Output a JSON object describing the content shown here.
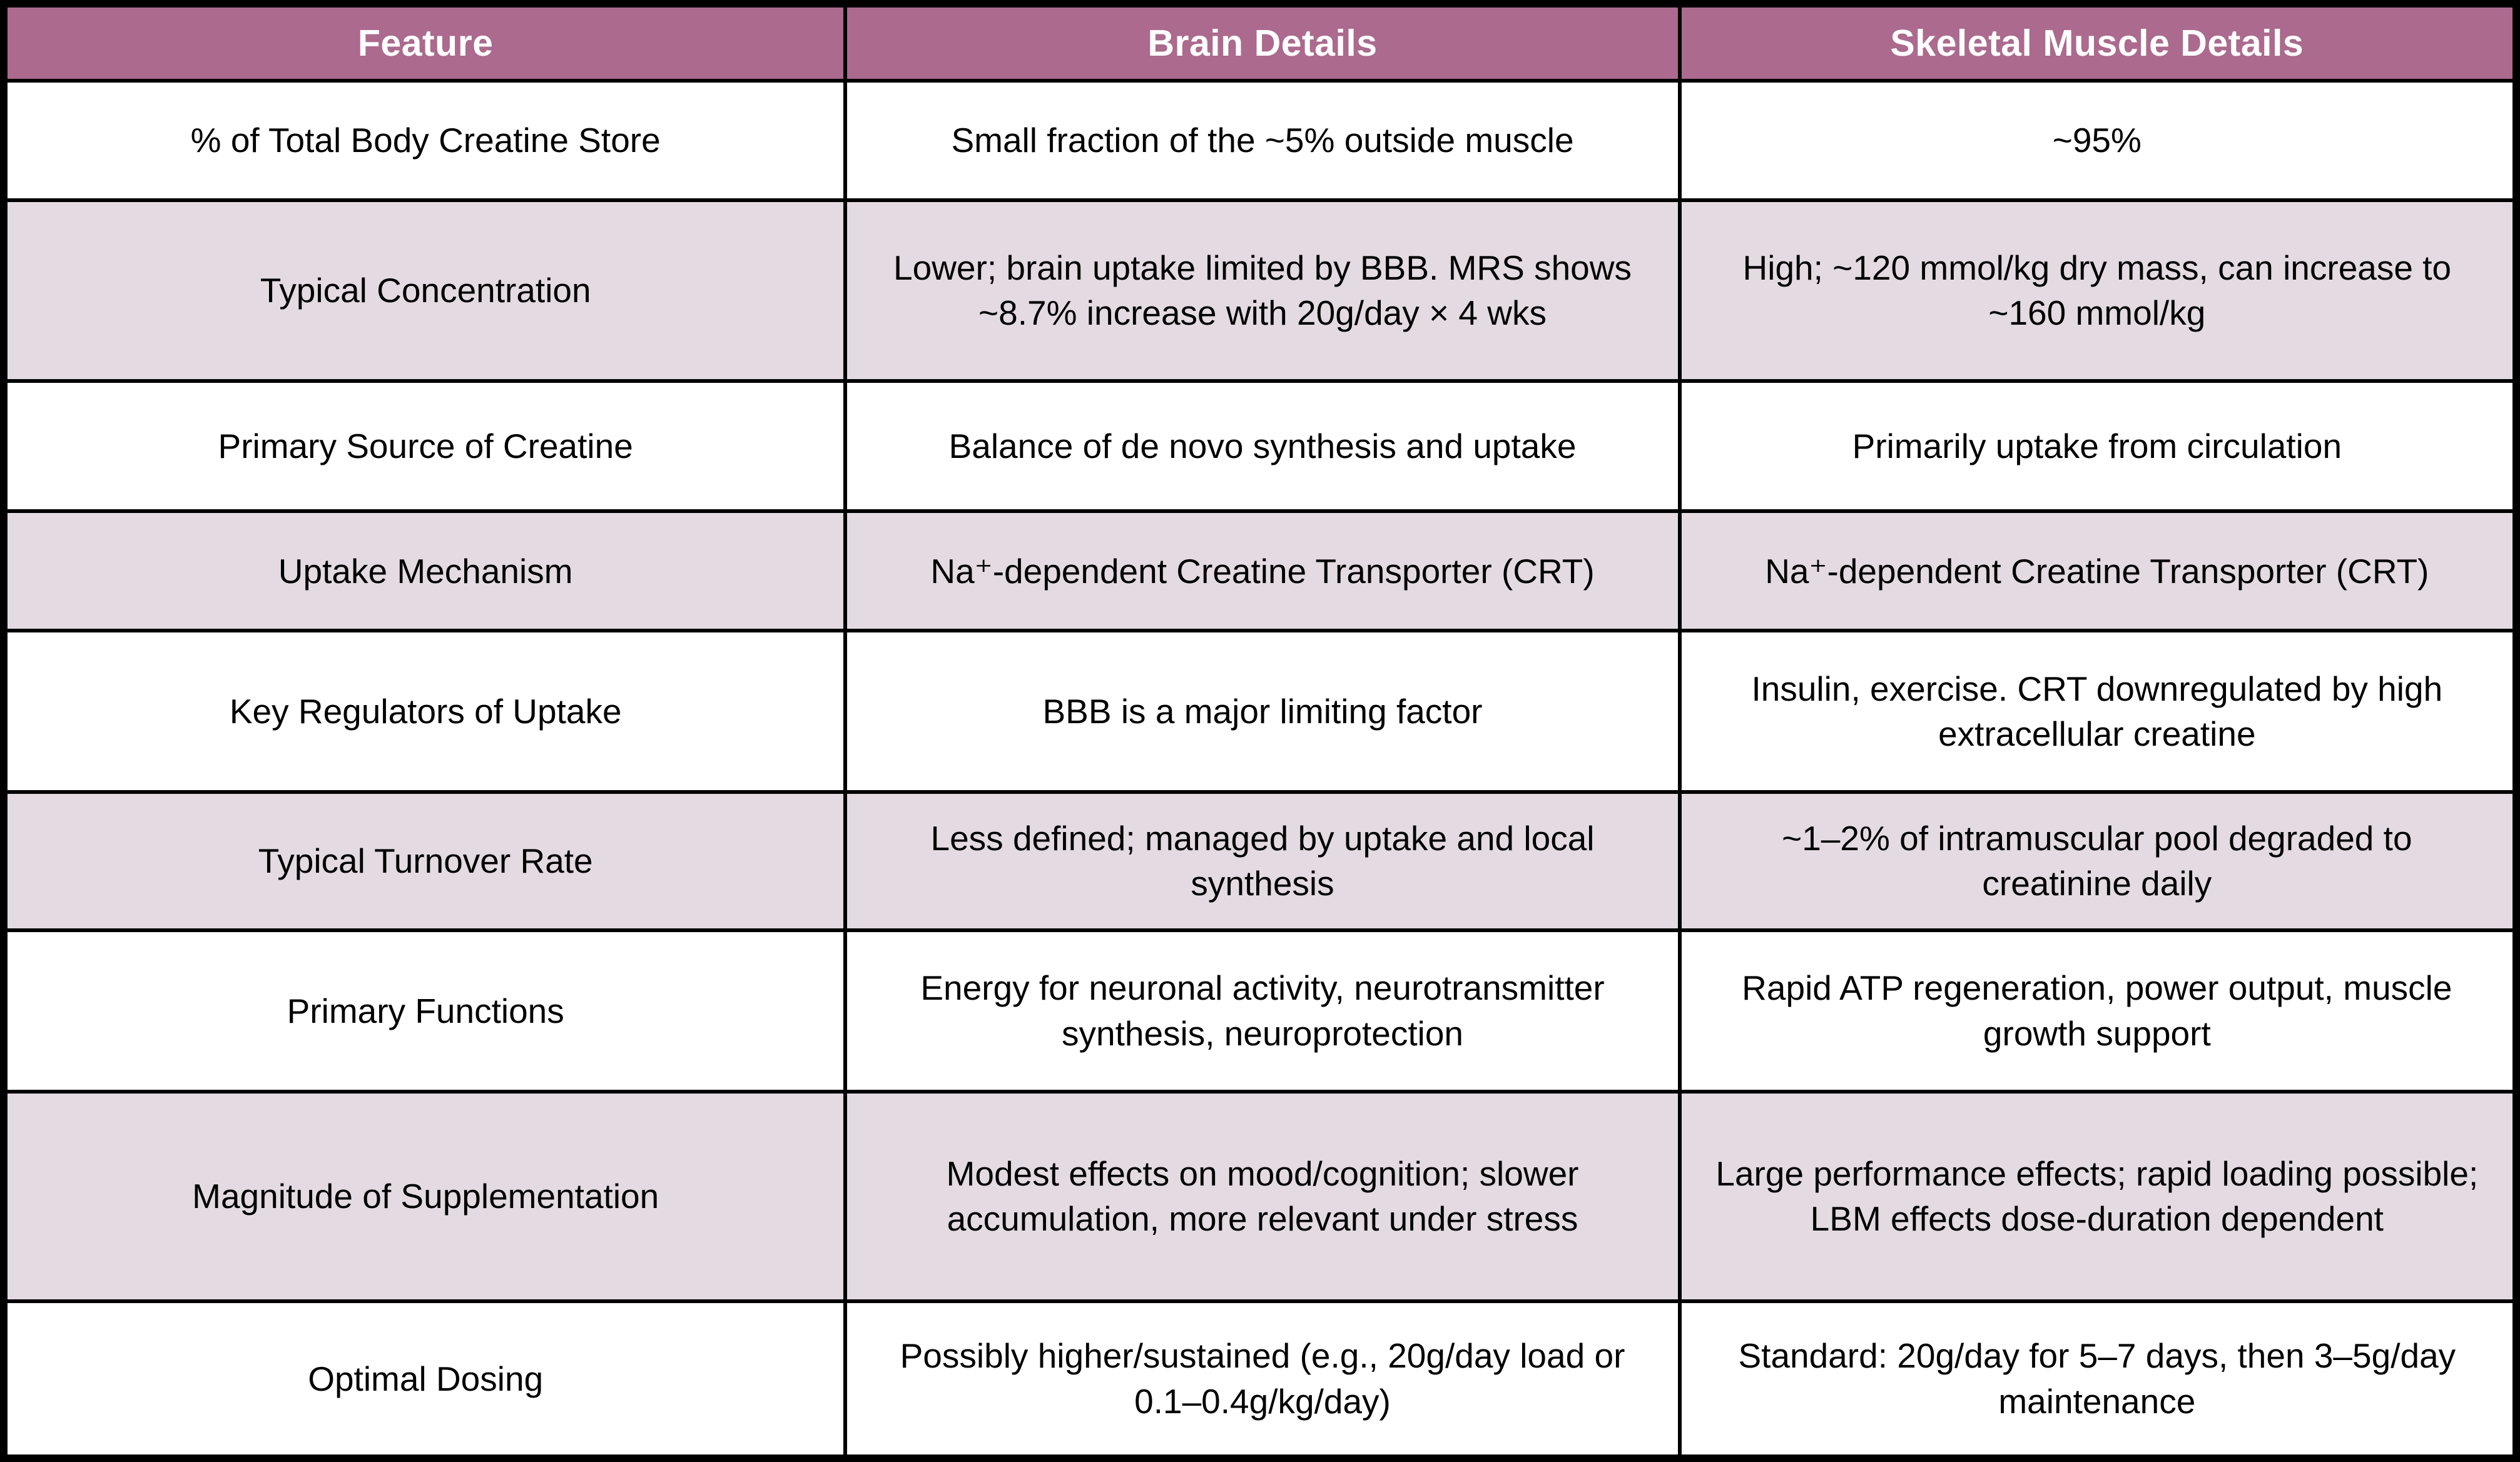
{
  "table": {
    "columns": [
      "Feature",
      "Brain Details",
      "Skeletal Muscle Details"
    ],
    "rows": [
      {
        "feature": "% of Total Body Creatine Store",
        "brain": "Small fraction of the ~5% outside muscle",
        "muscle": "~95%"
      },
      {
        "feature": "Typical Concentration",
        "brain": "Lower; brain uptake limited by BBB. MRS shows ~8.7% increase with 20g/day × 4 wks",
        "muscle": "High; ~120 mmol/kg dry mass, can increase to ~160 mmol/kg"
      },
      {
        "feature": "Primary Source of Creatine",
        "brain": "Balance of de novo synthesis and uptake",
        "muscle": "Primarily uptake from circulation"
      },
      {
        "feature": "Uptake Mechanism",
        "brain": "Na⁺-dependent Creatine Transporter (CRT)",
        "muscle": "Na⁺-dependent Creatine Transporter (CRT)"
      },
      {
        "feature": "Key Regulators of Uptake",
        "brain": "BBB is a major limiting factor",
        "muscle": "Insulin, exercise. CRT downregulated by high extracellular creatine"
      },
      {
        "feature": "Typical Turnover Rate",
        "brain": "Less defined; managed by uptake and local synthesis",
        "muscle": "~1–2% of intramuscular pool degraded to creatinine daily"
      },
      {
        "feature": "Primary Functions",
        "brain": "Energy for neuronal activity, neurotransmitter synthesis, neuroprotection",
        "muscle": "Rapid ATP regeneration, power output, muscle growth support"
      },
      {
        "feature": "Magnitude of Supplementation",
        "brain": "Modest effects on mood/cognition; slower accumulation, more relevant under stress",
        "muscle": "Large performance effects; rapid loading possible; LBM effects dose-duration dependent"
      },
      {
        "feature": "Optimal Dosing",
        "brain": "Possibly higher/sustained (e.g., 20g/day load or 0.1–0.4g/kg/day)",
        "muscle": "Standard: 20g/day for 5–7 days, then 3–5g/day maintenance"
      }
    ],
    "colors": {
      "header_bg": "#ab6a8e",
      "header_text": "#ffffff",
      "row_bg": "#ffffff",
      "row_alt_bg": "#e3dae2",
      "border": "#000000",
      "text": "#000000"
    }
  }
}
